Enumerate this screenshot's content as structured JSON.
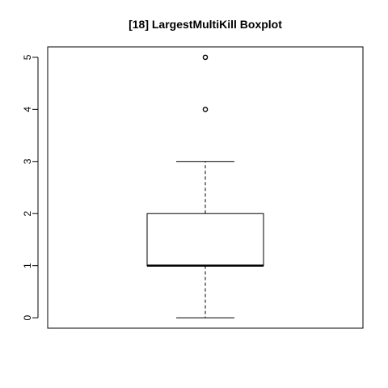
{
  "chart_data": {
    "type": "boxplot",
    "title": "[18] LargestMultiKill Boxplot",
    "xlabel": "",
    "ylabel": "",
    "ylim": [
      -0.2,
      5.2
    ],
    "yticks": [
      0,
      1,
      2,
      3,
      4,
      5
    ],
    "ytick_labels": [
      "0",
      "1",
      "2",
      "3",
      "4",
      "5"
    ],
    "series": [
      {
        "whisker_low": 0,
        "q1": 1,
        "median": 1,
        "q3": 2,
        "whisker_high": 3,
        "outliers": [
          4,
          5
        ]
      }
    ],
    "grid": false,
    "legend": "none"
  }
}
